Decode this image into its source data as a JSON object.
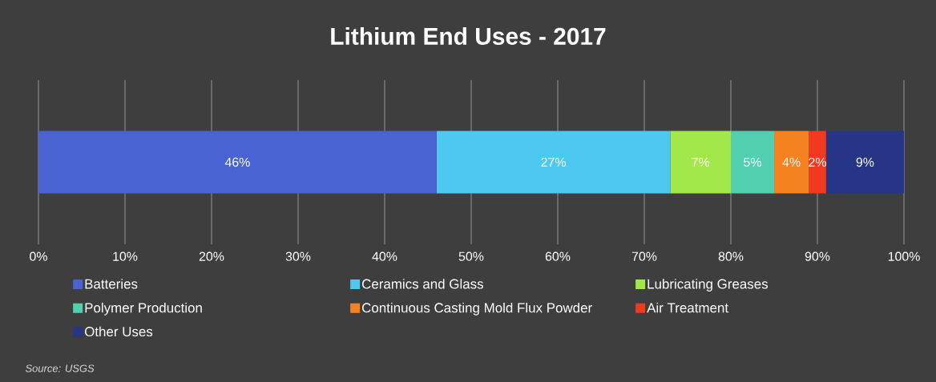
{
  "chart_data": {
    "type": "bar",
    "orientation": "horizontal",
    "stacked": true,
    "title": "Lithium End Uses - 2017",
    "categories": [
      null
    ],
    "series": [
      {
        "name": "Batteries",
        "color": "#4a63d3",
        "values": [
          46
        ],
        "value_labels": [
          "46%"
        ]
      },
      {
        "name": "Ceramics and Glass",
        "color": "#4dc8ef",
        "values": [
          27
        ],
        "value_labels": [
          "27%"
        ]
      },
      {
        "name": "Lubricating Greases",
        "color": "#a3e84a",
        "values": [
          7
        ],
        "value_labels": [
          "7%"
        ]
      },
      {
        "name": "Polymer Production",
        "color": "#52cfae",
        "values": [
          5
        ],
        "value_labels": [
          "5%"
        ]
      },
      {
        "name": "Continuous Casting Mold Flux Powder",
        "color": "#f58220",
        "values": [
          4
        ],
        "value_labels": [
          "4%"
        ]
      },
      {
        "name": "Air Treatment",
        "color": "#f0391f",
        "values": [
          2
        ],
        "value_labels": [
          "2%"
        ]
      },
      {
        "name": "Other Uses",
        "color": "#263585",
        "values": [
          9
        ],
        "value_labels": [
          "9%"
        ]
      }
    ],
    "xlim": [
      0,
      100
    ],
    "xticks": [
      {
        "value": 0,
        "label": "0%"
      },
      {
        "value": 10,
        "label": "10%"
      },
      {
        "value": 20,
        "label": "20%"
      },
      {
        "value": 30,
        "label": "30%"
      },
      {
        "value": 40,
        "label": "40%"
      },
      {
        "value": 50,
        "label": "50%"
      },
      {
        "value": 60,
        "label": "60%"
      },
      {
        "value": 70,
        "label": "70%"
      },
      {
        "value": 80,
        "label": "80%"
      },
      {
        "value": 90,
        "label": "90%"
      },
      {
        "value": 100,
        "label": "100%"
      }
    ],
    "grid": "x",
    "legend": "bottom",
    "annotations": [
      "Source: USGS"
    ]
  }
}
